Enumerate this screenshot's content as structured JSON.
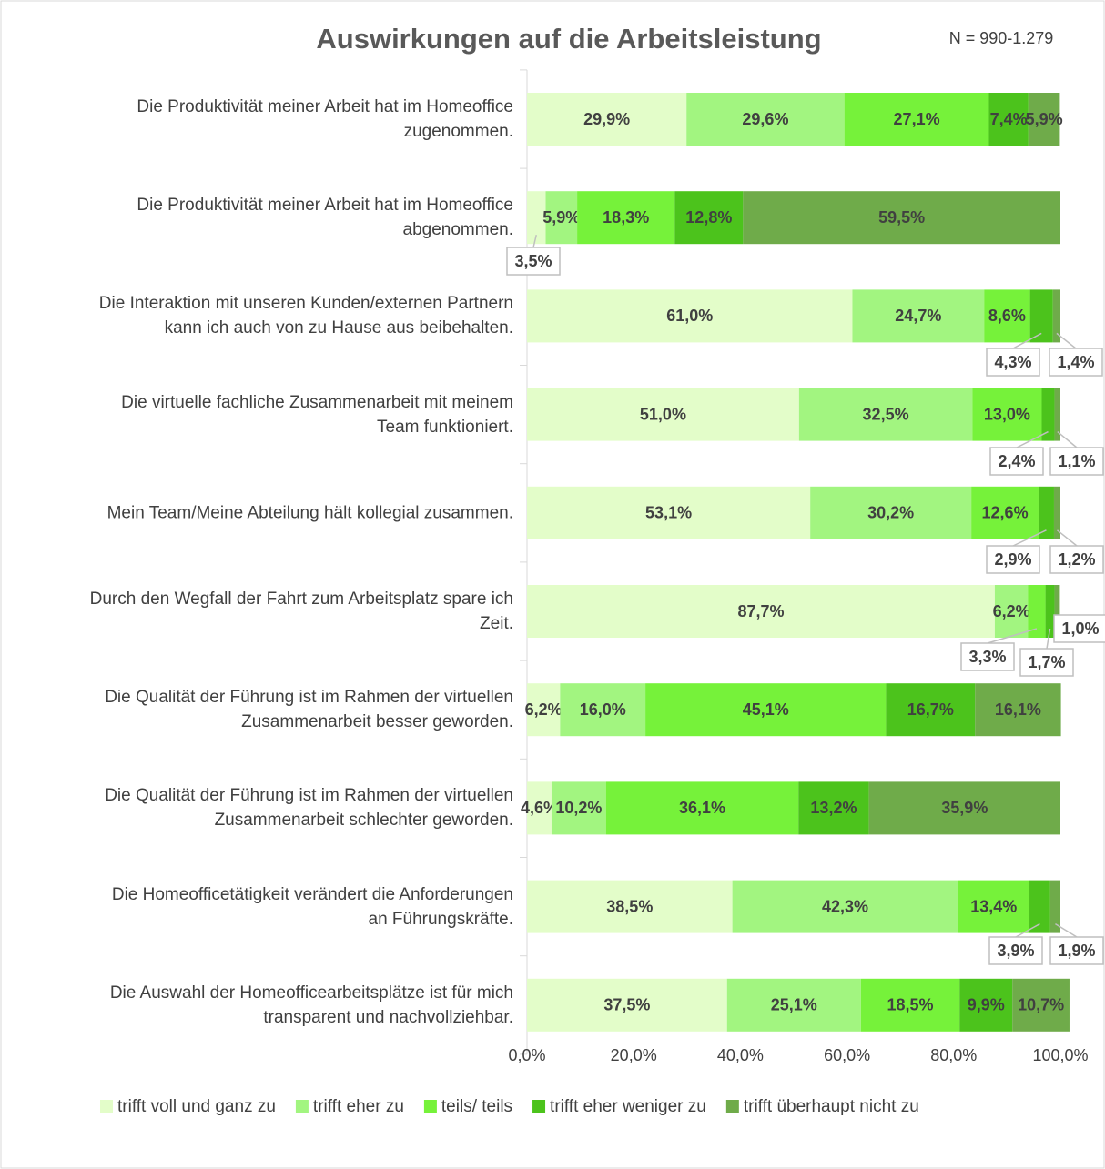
{
  "chart_data": {
    "type": "stacked-bar-horizontal",
    "title": "Auswirkungen auf die Arbeitsleistung",
    "subtitle": "N = 990-1.279",
    "categories": [
      "Die Produktivität meiner Arbeit hat im Homeoffice\nzugenommen.",
      "Die Produktivität meiner Arbeit hat im Homeoffice\nabgenommen.",
      "Die Interaktion mit unseren Kunden/externen Partnern\nkann ich auch von zu Hause aus beibehalten.",
      "Die virtuelle fachliche Zusammenarbeit mit meinem\nTeam funktioniert.",
      "Mein Team/Meine Abteilung hält kollegial zusammen.",
      "Durch den Wegfall der Fahrt zum Arbeitsplatz spare ich\nZeit.",
      "Die Qualität der Führung ist im Rahmen der virtuellen\nZusammenarbeit besser geworden.",
      "Die Qualität der Führung ist im Rahmen der virtuellen\nZusammenarbeit schlechter geworden.",
      "Die Homeofficetätigkeit verändert die Anforderungen\nan Führungskräfte.",
      "Die Auswahl der Homeofficearbeitsplätze ist für mich\ntransparent und nachvollziehbar."
    ],
    "series": [
      {
        "name": "trifft voll und ganz zu",
        "color": "#e3fdc9",
        "values": [
          29.9,
          3.5,
          61.0,
          51.0,
          53.1,
          87.7,
          6.2,
          4.6,
          38.5,
          37.5
        ],
        "value_labels": [
          "29,9%",
          "3,5%",
          "61,0%",
          "51,0%",
          "53,1%",
          "87,7%",
          "6,2%",
          "4,6%",
          "38,5%",
          "37,5%"
        ]
      },
      {
        "name": "trifft eher zu",
        "color": "#a2f580",
        "values": [
          29.6,
          5.9,
          24.7,
          32.5,
          30.2,
          6.2,
          16.0,
          10.2,
          42.3,
          25.1
        ],
        "value_labels": [
          "29,6%",
          "5,9%",
          "24,7%",
          "32,5%",
          "30,2%",
          "6,2%",
          "16,0%",
          "10,2%",
          "42,3%",
          "25,1%"
        ]
      },
      {
        "name": "teils/ teils",
        "color": "#76f23a",
        "values": [
          27.1,
          18.3,
          8.6,
          13.0,
          12.6,
          3.3,
          45.1,
          36.1,
          13.4,
          18.5
        ],
        "value_labels": [
          "27,1%",
          "18,3%",
          "8,6%",
          "13,0%",
          "12,6%",
          "3,3%",
          "45,1%",
          "36,1%",
          "13,4%",
          "18,5%"
        ]
      },
      {
        "name": "trifft eher weniger zu",
        "color": "#4cc31c",
        "values": [
          7.4,
          12.8,
          4.3,
          2.4,
          2.9,
          1.7,
          16.7,
          13.2,
          3.9,
          9.9
        ],
        "value_labels": [
          "7,4%",
          "12,8%",
          "4,3%",
          "2,4%",
          "2,9%",
          "1,7%",
          "16,7%",
          "13,2%",
          "3,9%",
          "9,9%"
        ]
      },
      {
        "name": "trifft überhaupt nicht zu",
        "color": "#6fab4a",
        "values": [
          5.9,
          59.5,
          1.4,
          1.1,
          1.2,
          1.0,
          16.1,
          35.9,
          1.9,
          10.7
        ],
        "value_labels": [
          "5,9%",
          "59,5%",
          "1,4%",
          "1,1%",
          "1,2%",
          "1,0%",
          "16,1%",
          "35,9%",
          "1,9%",
          "10,7%"
        ]
      }
    ],
    "xlim": [
      0,
      100
    ],
    "xticks": [
      {
        "value": 0,
        "label": "0,0%"
      },
      {
        "value": 20,
        "label": "20,0%"
      },
      {
        "value": 40,
        "label": "40,0%"
      },
      {
        "value": 60,
        "label": "60,0%"
      },
      {
        "value": 80,
        "label": "80,0%"
      },
      {
        "value": 100,
        "label": "100,0%"
      }
    ],
    "grid": false,
    "legend": "bottom"
  }
}
